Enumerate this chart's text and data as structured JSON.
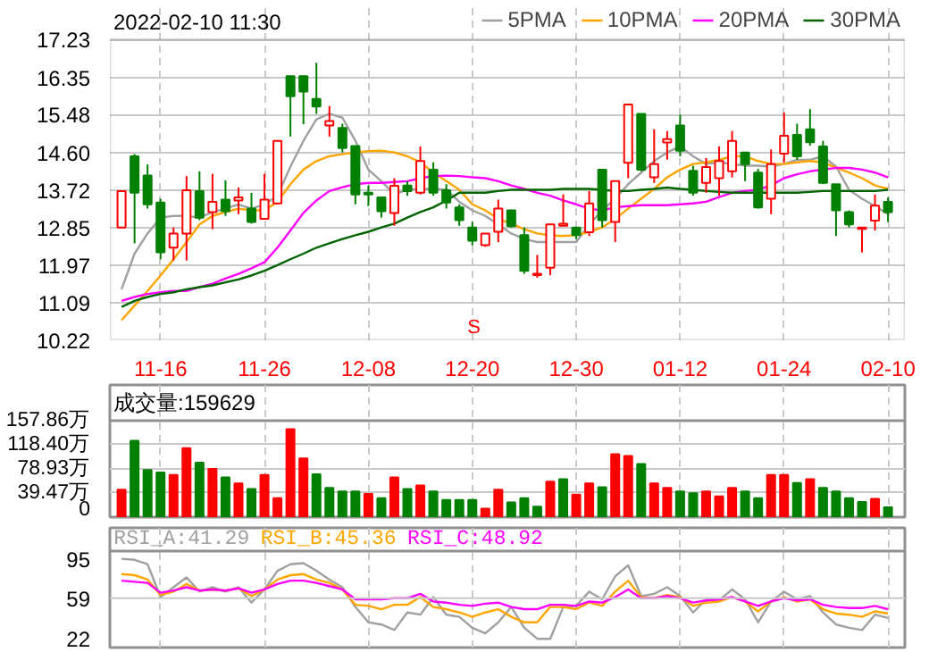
{
  "chart_data": [
    {
      "type": "candlestick",
      "title": "2022-02-10 11:30",
      "categories": [
        null,
        null,
        null,
        "11-16",
        null,
        null,
        null,
        null,
        null,
        null,
        null,
        "11-26",
        null,
        null,
        null,
        null,
        null,
        null,
        null,
        "12-08",
        null,
        null,
        null,
        null,
        null,
        null,
        null,
        "12-20",
        null,
        null,
        null,
        null,
        null,
        null,
        null,
        "12-30",
        null,
        null,
        null,
        null,
        null,
        null,
        null,
        "01-12",
        null,
        null,
        null,
        null,
        null,
        null,
        null,
        "01-24",
        null,
        null,
        null,
        null,
        null,
        null,
        null,
        "02-10"
      ],
      "ohlc": [
        [
          12.85,
          13.7,
          12.85,
          13.7
        ],
        [
          14.51,
          14.56,
          12.48,
          13.66
        ],
        [
          14.06,
          14.32,
          13.29,
          13.39
        ],
        [
          13.43,
          13.52,
          12.11,
          12.27
        ],
        [
          12.38,
          12.85,
          12.08,
          12.71
        ],
        [
          12.71,
          14.05,
          12.08,
          13.72
        ],
        [
          13.7,
          14.16,
          13.02,
          13.08
        ],
        [
          13.21,
          14.1,
          12.81,
          13.45
        ],
        [
          13.5,
          13.95,
          13.12,
          13.23
        ],
        [
          13.48,
          13.78,
          13.16,
          13.55
        ],
        [
          13.29,
          13.66,
          12.94,
          12.98
        ],
        [
          13.05,
          14.1,
          13.05,
          13.5
        ],
        [
          13.41,
          14.87,
          13.39,
          14.87
        ],
        [
          16.38,
          16.38,
          14.97,
          15.91
        ],
        [
          16.38,
          16.38,
          15.26,
          16.02
        ],
        [
          15.85,
          16.69,
          15.5,
          15.67
        ],
        [
          15.23,
          15.68,
          14.97,
          15.33
        ],
        [
          15.17,
          15.27,
          14.6,
          14.7
        ],
        [
          14.75,
          14.75,
          13.39,
          13.62
        ],
        [
          13.66,
          13.83,
          13.35,
          13.62
        ],
        [
          13.55,
          13.55,
          13.08,
          13.23
        ],
        [
          13.19,
          14.0,
          12.89,
          13.82
        ],
        [
          13.83,
          13.93,
          13.59,
          13.7
        ],
        [
          13.66,
          14.74,
          13.62,
          14.4
        ],
        [
          14.2,
          14.37,
          13.59,
          13.66
        ],
        [
          13.72,
          13.86,
          13.29,
          13.43
        ],
        [
          13.32,
          13.39,
          12.89,
          13.02
        ],
        [
          12.85,
          12.98,
          12.43,
          12.54
        ],
        [
          12.44,
          12.71,
          12.4,
          12.71
        ],
        [
          12.75,
          13.5,
          12.51,
          13.29
        ],
        [
          13.25,
          13.25,
          12.85,
          12.88
        ],
        [
          12.67,
          12.85,
          11.77,
          11.84
        ],
        [
          11.74,
          12.21,
          11.68,
          11.77
        ],
        [
          11.91,
          12.92,
          11.74,
          12.92
        ],
        [
          12.89,
          13.62,
          12.89,
          12.94
        ],
        [
          12.85,
          12.85,
          12.58,
          12.67
        ],
        [
          12.74,
          13.7,
          12.65,
          13.41
        ],
        [
          14.2,
          14.2,
          12.85,
          13.02
        ],
        [
          12.98,
          13.93,
          12.51,
          13.93
        ],
        [
          14.36,
          15.72,
          14.0,
          15.72
        ],
        [
          15.5,
          15.5,
          14.16,
          14.2
        ],
        [
          14.02,
          15.14,
          13.89,
          14.33
        ],
        [
          14.83,
          15.1,
          14.43,
          14.91
        ],
        [
          15.23,
          15.48,
          14.51,
          14.64
        ],
        [
          14.17,
          14.29,
          13.59,
          13.66
        ],
        [
          13.89,
          14.47,
          13.66,
          14.26
        ],
        [
          14.0,
          14.74,
          13.59,
          14.4
        ],
        [
          14.16,
          15.1,
          14.02,
          14.87
        ],
        [
          14.6,
          14.6,
          13.93,
          14.33
        ],
        [
          14.13,
          14.22,
          13.29,
          13.32
        ],
        [
          13.52,
          14.67,
          13.16,
          14.33
        ],
        [
          14.57,
          15.53,
          14.37,
          14.99
        ],
        [
          15.01,
          15.27,
          14.43,
          14.51
        ],
        [
          15.14,
          15.61,
          14.76,
          14.84
        ],
        [
          14.74,
          14.87,
          13.86,
          13.89
        ],
        [
          13.86,
          13.86,
          12.65,
          13.25
        ],
        [
          13.21,
          13.25,
          12.85,
          12.92
        ],
        [
          12.82,
          12.85,
          12.27,
          12.85
        ],
        [
          13.01,
          13.62,
          12.78,
          13.36
        ],
        [
          13.45,
          13.55,
          12.98,
          13.21
        ]
      ],
      "colors": [
        "#ff0000",
        "#008000",
        "#008000",
        "#008000",
        "#ff0000",
        "#ff0000",
        "#008000",
        "#ff0000",
        "#008000",
        "#ff0000",
        "#008000",
        "#ff0000",
        "#ff0000",
        "#008000",
        "#008000",
        "#008000",
        "#ff0000",
        "#008000",
        "#008000",
        "#008000",
        "#008000",
        "#ff0000",
        "#008000",
        "#ff0000",
        "#008000",
        "#008000",
        "#008000",
        "#008000",
        "#ff0000",
        "#ff0000",
        "#008000",
        "#008000",
        "#ff0000",
        "#ff0000",
        "#ff0000",
        "#008000",
        "#ff0000",
        "#008000",
        "#ff0000",
        "#ff0000",
        "#008000",
        "#ff0000",
        "#ff0000",
        "#008000",
        "#008000",
        "#ff0000",
        "#ff0000",
        "#ff0000",
        "#008000",
        "#008000",
        "#ff0000",
        "#ff0000",
        "#008000",
        "#008000",
        "#008000",
        "#008000",
        "#008000",
        "#ff0000",
        "#ff0000",
        "#008000"
      ],
      "ylim": [
        10.22,
        17.23
      ],
      "yticks": [
        10.22,
        11.09,
        11.97,
        12.85,
        13.72,
        {
          "value": 14.6,
          "label": "14.60"
        },
        15.48,
        16.35,
        17.23
      ],
      "grid": true,
      "legend": "top right",
      "annotations": [
        "S"
      ],
      "series": [
        {
          "name": "5PMA",
          "type": "line",
          "color": "#a0a0a0",
          "values": [
            11.41,
            12.24,
            12.71,
            13.08,
            13.12,
            13.12,
            13.08,
            13.21,
            13.29,
            13.39,
            13.29,
            13.39,
            13.59,
            14.27,
            14.87,
            15.37,
            15.5,
            15.41,
            14.87,
            14.2,
            13.93,
            13.62,
            13.73,
            13.75,
            13.75,
            13.73,
            13.45,
            13.25,
            13.12,
            12.92,
            12.71,
            12.58,
            12.51,
            12.51,
            12.51,
            12.51,
            12.92,
            13.25,
            13.52,
            13.86,
            14.13,
            14.4,
            14.6,
            14.74,
            14.51,
            14.33,
            14.37,
            14.33,
            14.29,
            14.29,
            14.27,
            14.33,
            14.43,
            14.43,
            14.51,
            14.27,
            13.73,
            13.52,
            13.35,
            13.16
          ]
        },
        {
          "name": "10PMA",
          "type": "line",
          "color": "#ffa500",
          "values": [
            10.69,
            11.03,
            11.37,
            11.73,
            12.11,
            12.51,
            12.92,
            13.12,
            13.21,
            13.29,
            13.25,
            13.25,
            13.45,
            13.86,
            14.2,
            14.4,
            14.51,
            14.56,
            14.6,
            14.63,
            14.64,
            14.6,
            14.51,
            14.37,
            14.13,
            13.93,
            13.73,
            13.39,
            13.25,
            13.05,
            12.94,
            12.81,
            12.71,
            12.67,
            12.65,
            12.67,
            12.75,
            12.85,
            13.05,
            13.29,
            13.52,
            13.75,
            14.02,
            14.2,
            14.33,
            14.37,
            14.43,
            14.51,
            14.51,
            14.4,
            14.33,
            14.33,
            14.37,
            14.4,
            14.37,
            14.24,
            14.13,
            14.0,
            13.83,
            13.75
          ]
        },
        {
          "name": "20PMA",
          "type": "line",
          "color": "#ff00ff",
          "values": [
            11.14,
            11.23,
            11.3,
            11.34,
            11.37,
            11.37,
            11.46,
            11.54,
            11.66,
            11.77,
            11.9,
            12.04,
            12.38,
            12.78,
            13.19,
            13.48,
            13.7,
            13.79,
            13.86,
            13.89,
            13.89,
            13.91,
            13.93,
            14.0,
            14.05,
            14.06,
            14.05,
            14.02,
            14.0,
            13.93,
            13.83,
            13.75,
            13.66,
            13.59,
            13.48,
            13.39,
            13.29,
            13.25,
            13.32,
            13.35,
            13.37,
            13.37,
            13.37,
            13.39,
            13.41,
            13.45,
            13.56,
            13.66,
            13.7,
            13.73,
            13.83,
            14.0,
            14.09,
            14.16,
            14.2,
            14.24,
            14.24,
            14.2,
            14.13,
            14.02
          ]
        },
        {
          "name": "30PMA",
          "type": "line",
          "color": "#006400",
          "values": [
            11.0,
            11.14,
            11.23,
            11.3,
            11.34,
            11.41,
            11.46,
            11.5,
            11.57,
            11.64,
            11.73,
            11.84,
            11.97,
            12.11,
            12.24,
            12.38,
            12.48,
            12.58,
            12.67,
            12.75,
            12.85,
            12.94,
            13.08,
            13.21,
            13.32,
            13.48,
            13.66,
            13.66,
            13.66,
            13.7,
            13.73,
            13.73,
            13.73,
            13.73,
            13.75,
            13.75,
            13.75,
            13.73,
            13.7,
            13.7,
            13.73,
            13.75,
            13.78,
            13.75,
            13.73,
            13.7,
            13.68,
            13.66,
            13.66,
            13.66,
            13.66,
            13.66,
            13.66,
            13.68,
            13.7,
            13.7,
            13.7,
            13.7,
            13.7,
            13.73
          ]
        }
      ]
    },
    {
      "type": "bar",
      "title": "成交量:159629",
      "categories": [
        null,
        null,
        null,
        null,
        null,
        null,
        null,
        null,
        null,
        null,
        null,
        null,
        null,
        null,
        null,
        null,
        null,
        null,
        null,
        null,
        null,
        null,
        null,
        null,
        null,
        null,
        null,
        null,
        null,
        null,
        null,
        null,
        null,
        null,
        null,
        null,
        null,
        null,
        null,
        null,
        null,
        null,
        null,
        null,
        null,
        null,
        null,
        null,
        null,
        null,
        null,
        null,
        null,
        null,
        null,
        null,
        null,
        null,
        null,
        null
      ],
      "values": [
        45,
        125,
        77,
        73,
        69,
        113,
        89,
        79,
        65,
        55,
        46,
        69,
        31,
        144,
        96,
        70,
        48,
        42,
        42,
        38,
        31,
        65,
        46,
        52,
        42,
        28,
        28,
        28,
        14,
        45,
        24,
        31,
        17,
        58,
        62,
        37,
        55,
        49,
        103,
        100,
        87,
        55,
        48,
        42,
        39,
        42,
        34,
        48,
        42,
        31,
        69,
        69,
        56,
        62,
        48,
        42,
        31,
        25,
        30,
        16
      ],
      "colors": [
        "#ff0000",
        "#008000",
        "#008000",
        "#008000",
        "#ff0000",
        "#ff0000",
        "#008000",
        "#ff0000",
        "#008000",
        "#ff0000",
        "#008000",
        "#ff0000",
        "#ff0000",
        "#ff0000",
        "#ff0000",
        "#008000",
        "#008000",
        "#008000",
        "#008000",
        "#ff0000",
        "#008000",
        "#ff0000",
        "#008000",
        "#ff0000",
        "#008000",
        "#008000",
        "#008000",
        "#008000",
        "#ff0000",
        "#ff0000",
        "#008000",
        "#008000",
        "#008000",
        "#ff0000",
        "#008000",
        "#ff0000",
        "#ff0000",
        "#008000",
        "#ff0000",
        "#ff0000",
        "#008000",
        "#ff0000",
        "#ff0000",
        "#008000",
        "#008000",
        "#ff0000",
        "#ff0000",
        "#ff0000",
        "#008000",
        "#008000",
        "#ff0000",
        "#ff0000",
        "#008000",
        "#ff0000",
        "#008000",
        "#008000",
        "#008000",
        "#008000",
        "#ff0000",
        "#008000"
      ],
      "ylim": [
        0,
        157.86
      ],
      "yticks": [
        0,
        {
          "value": 39.47,
          "label": "39.47万"
        },
        {
          "value": 78.93,
          "label": "78.93万"
        },
        {
          "value": 118.4,
          "label": "118.40万"
        },
        {
          "value": 157.86,
          "label": "157.86万"
        }
      ],
      "grid": true,
      "tick_labels": "y"
    },
    {
      "type": "line",
      "categories": [
        null,
        null,
        null,
        null,
        null,
        null,
        null,
        null,
        null,
        null,
        null,
        null,
        null,
        null,
        null,
        null,
        null,
        null,
        null,
        null,
        null,
        null,
        null,
        null,
        null,
        null,
        null,
        null,
        null,
        null,
        null,
        null,
        null,
        null,
        null,
        null,
        null,
        null,
        null,
        null,
        null,
        null,
        null,
        null,
        null,
        null,
        null,
        null,
        null,
        null,
        null,
        null,
        null,
        null,
        null,
        null,
        null,
        null,
        null,
        null
      ],
      "series": [
        {
          "name": "RSI_A:41.29",
          "color": "#a0a0a0",
          "values": [
            95,
            94,
            90,
            60,
            69,
            78,
            65,
            69,
            65,
            69,
            55,
            67,
            84,
            90,
            91,
            84,
            76,
            69,
            51,
            37,
            35,
            30,
            46,
            44,
            60,
            44,
            42,
            32,
            27,
            37,
            51,
            32,
            22,
            22,
            51,
            52,
            65,
            58,
            79,
            89,
            61,
            63,
            69,
            61,
            46,
            58,
            57,
            67,
            58,
            37,
            56,
            65,
            58,
            61,
            46,
            35,
            32,
            30,
            44,
            41
          ]
        },
        {
          "name": "RSI_B:45.36",
          "color": "#ffa500",
          "values": [
            81,
            80,
            76,
            62,
            65,
            72,
            66,
            67,
            66,
            68,
            61,
            67,
            76,
            80,
            81,
            76,
            73,
            67,
            53,
            52,
            49,
            53,
            53,
            60,
            51,
            49,
            46,
            42,
            46,
            49,
            42,
            37,
            37,
            51,
            51,
            49,
            55,
            52,
            65,
            75,
            60,
            59,
            62,
            60,
            52,
            55,
            56,
            60,
            56,
            47,
            56,
            60,
            56,
            58,
            49,
            45,
            44,
            42,
            47,
            45
          ]
        },
        {
          "name": "RSI_C:48.92",
          "color": "#ff00ff",
          "values": [
            75,
            74,
            73,
            64,
            66,
            69,
            66,
            67,
            66,
            68,
            64,
            67,
            72,
            75,
            75,
            73,
            70,
            67,
            58,
            58,
            58,
            59,
            59,
            63,
            56,
            55,
            53,
            52,
            54,
            55,
            51,
            49,
            49,
            53,
            53,
            52,
            56,
            55,
            60,
            67,
            59,
            59,
            61,
            59,
            55,
            57,
            58,
            60,
            56,
            52,
            56,
            59,
            57,
            58,
            53,
            51,
            50,
            50,
            52,
            49
          ]
        }
      ],
      "ylim": [
        14,
        102
      ],
      "yticks": [
        22,
        59,
        95
      ],
      "grid": "x",
      "ref_lines": [
        {
          "axis": "y",
          "value": 59,
          "color": "#c8c8c8"
        }
      ],
      "legend": "top left",
      "tick_labels": "y"
    }
  ]
}
